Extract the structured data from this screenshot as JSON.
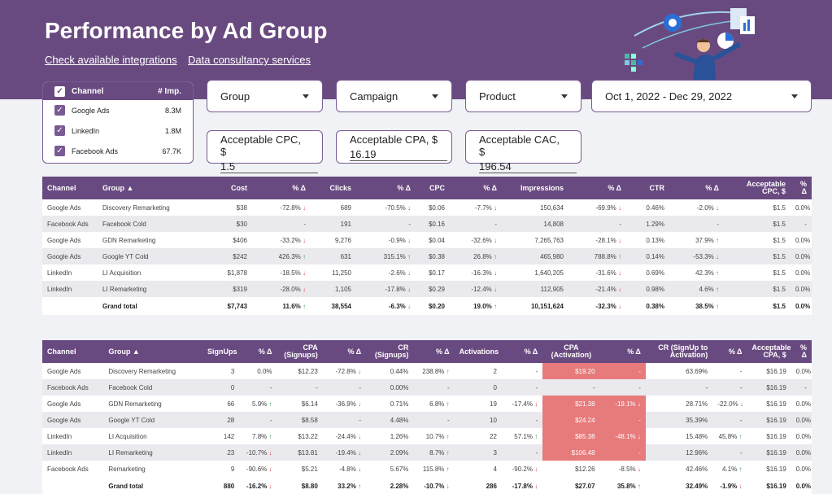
{
  "header": {
    "title": "Performance by Ad Group",
    "links": [
      "Check available integrations",
      "Data consultancy services"
    ]
  },
  "channel_filter": {
    "header_label": "Channel",
    "header_metric": "# Imp.",
    "items": [
      {
        "label": "Google Ads",
        "value": "8.3M"
      },
      {
        "label": "LinkedIn",
        "value": "1.8M"
      },
      {
        "label": "Facebook Ads",
        "value": "67.7K"
      }
    ]
  },
  "filters": {
    "group": "Group",
    "campaign": "Campaign",
    "product": "Product",
    "date_range": "Oct 1, 2022 - Dec 29, 2022"
  },
  "inputs": [
    {
      "label": "Acceptable CPC, $",
      "value": "1.5"
    },
    {
      "label": "Acceptable CPA, $",
      "value": "16.19"
    },
    {
      "label": "Acceptable CAC, $",
      "value": "196.54"
    }
  ],
  "table1": {
    "headers": [
      "Channel",
      "Group ▲",
      "Cost",
      "% Δ",
      "Clicks",
      "% Δ",
      "CPC",
      "% Δ",
      "Impressions",
      "% Δ",
      "CTR",
      "% Δ",
      "Acceptable CPC, $",
      "% Δ"
    ],
    "rows": [
      [
        "Google Ads",
        "Discovery Remarketing",
        "$38",
        "-72.8% ↓",
        "689",
        "-70.5% ↓",
        "$0.06",
        "-7.7% ↓",
        "150,634",
        "-69.9% ↓",
        "0.46%",
        "-2.0% ↓",
        "$1.5",
        "0.0%"
      ],
      [
        "Facebook Ads",
        "Facebook Cold",
        "$30",
        "-",
        "191",
        "-",
        "$0.16",
        "-",
        "14,808",
        "-",
        "1.29%",
        "-",
        "$1.5",
        "-"
      ],
      [
        "Google Ads",
        "GDN Remarketing",
        "$406",
        "-33.2% ↓",
        "9,276",
        "-0.9% ↓",
        "$0.04",
        "-32.6% ↓",
        "7,265,763",
        "-28.1% ↓",
        "0.13%",
        "37.9% ↑",
        "$1.5",
        "0.0%"
      ],
      [
        "Google Ads",
        "Google YT Cold",
        "$242",
        "426.3% ↑",
        "631",
        "315.1% ↑",
        "$0.38",
        "26.8% ↑",
        "465,980",
        "788.8% ↑",
        "0.14%",
        "-53.3% ↓",
        "$1.5",
        "0.0%"
      ],
      [
        "LinkedIn",
        "LI Acquisition",
        "$1,878",
        "-18.5% ↓",
        "11,250",
        "-2.6% ↓",
        "$0.17",
        "-16.3% ↓",
        "1,640,205",
        "-31.6% ↓",
        "0.69%",
        "42.3% ↑",
        "$1.5",
        "0.0%"
      ],
      [
        "LinkedIn",
        "LI Remarketing",
        "$319",
        "-28.0% ↓",
        "1,105",
        "-17.8% ↓",
        "$0.29",
        "-12.4% ↓",
        "112,905",
        "-21.4% ↓",
        "0.98%",
        "4.6% ↑",
        "$1.5",
        "0.0%"
      ]
    ],
    "total": [
      "",
      "Grand total",
      "$7,743",
      "11.6% ↑",
      "38,554",
      "-6.3% ↓",
      "$0.20",
      "19.0% ↑",
      "10,151,624",
      "-32.3% ↓",
      "0.38%",
      "38.5% ↑",
      "$1.5",
      "0.0%"
    ]
  },
  "table2": {
    "headers": [
      "Channel",
      "Group ▲",
      "SignUps",
      "% Δ",
      "CPA (Signups)",
      "% Δ",
      "CR (Signups)",
      "% Δ",
      "Activations",
      "% Δ",
      "CPA (Activation)",
      "% Δ",
      "CR (SignUp to Activation)",
      "% Δ",
      "Acceptable CPA, $",
      "% Δ"
    ],
    "rows": [
      [
        "Google Ads",
        "Discovery Remarketing",
        "3",
        "0.0%",
        "$12.23",
        "-72.8% ↓",
        "0.44%",
        "238.8% ↑",
        "2",
        "-",
        "$19.20",
        "-",
        "63.69%",
        "-",
        "$16.19",
        "0.0%"
      ],
      [
        "Facebook Ads",
        "Facebook Cold",
        "0",
        "-",
        "-",
        "-",
        "0.00%",
        "-",
        "0",
        "-",
        "-",
        "-",
        "-",
        "-",
        "$16.19",
        "-"
      ],
      [
        "Google Ads",
        "GDN Remarketing",
        "66",
        "5.9% ↑",
        "$6.14",
        "-36.9% ↓",
        "0.71%",
        "6.8% ↑",
        "19",
        "-17.4% ↓",
        "$21.38",
        "-19.1% ↓",
        "28.71%",
        "-22.0% ↓",
        "$16.19",
        "0.0%"
      ],
      [
        "Google Ads",
        "Google YT Cold",
        "28",
        "-",
        "$8.58",
        "-",
        "4.48%",
        "-",
        "10",
        "-",
        "$24.24",
        "-",
        "35.39%",
        "-",
        "$16.19",
        "0.0%"
      ],
      [
        "LinkedIn",
        "LI Acquisition",
        "142",
        "7.8% ↑",
        "$13.22",
        "-24.4% ↓",
        "1.26%",
        "10.7% ↑",
        "22",
        "57.1% ↑",
        "$85.38",
        "-48.1% ↓",
        "15.48%",
        "45.8% ↑",
        "$16.19",
        "0.0%"
      ],
      [
        "LinkedIn",
        "LI Remarketing",
        "23",
        "-10.7% ↓",
        "$13.81",
        "-19.4% ↓",
        "2.09%",
        "8.7% ↑",
        "3",
        "-",
        "$106.48",
        "-",
        "12.96%",
        "-",
        "$16.19",
        "0.0%"
      ],
      [
        "Facebook Ads",
        "Remarketing",
        "9",
        "-90.6% ↓",
        "$5.21",
        "-4.8% ↓",
        "5.67%",
        "115.8% ↑",
        "4",
        "-90.2% ↓",
        "$12.26",
        "-8.5% ↓",
        "42.46%",
        "4.1% ↑",
        "$16.19",
        "0.0%"
      ]
    ],
    "total": [
      "",
      "Grand total",
      "880",
      "-16.2% ↓",
      "$8.80",
      "33.2% ↑",
      "2.28%",
      "-10.7% ↓",
      "286",
      "-17.8% ↓",
      "$27.07",
      "35.8% ↑",
      "32.49%",
      "-1.9% ↓",
      "$16.19",
      "0.0%"
    ],
    "highlight_col": 10,
    "highlight_rows": [
      0,
      2,
      3,
      4,
      5
    ],
    "highlight_delta_rows": [
      0,
      2,
      3,
      4,
      5
    ],
    "highlight_color": "#e77a7a"
  }
}
